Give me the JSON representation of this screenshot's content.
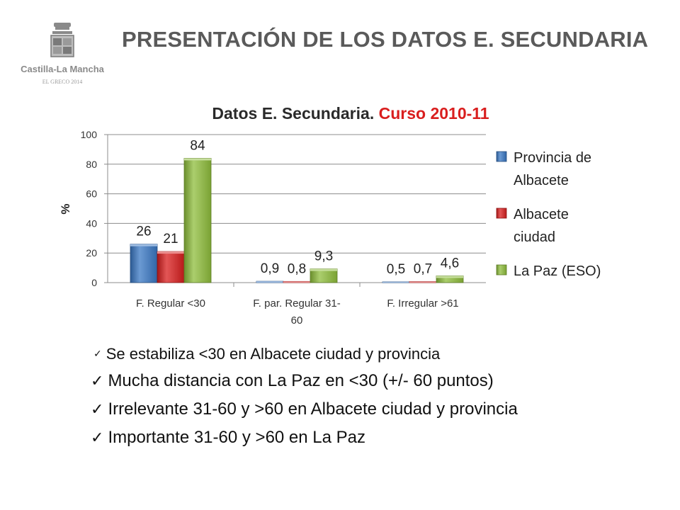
{
  "header": {
    "title": "PRESENTACIÓN DE LOS DATOS E. SECUNDARIA",
    "logo_name": "Castilla-La Mancha",
    "logo_sub": "EL GRECO 2014"
  },
  "chart_data": {
    "type": "bar",
    "title": "Datos E. Secundaria.",
    "title_highlight": "Curso 2010-11",
    "ylabel": "%",
    "xlabel": "",
    "ylim": [
      0,
      100
    ],
    "yticks": [
      "0",
      "20",
      "40",
      "60",
      "80",
      "100"
    ],
    "grid": true,
    "legend_position": "right",
    "categories": [
      "F. Regular <30",
      "F. par. Regular 31-60",
      "F. Irregular >61"
    ],
    "category_lines": [
      [
        "F. Regular <30"
      ],
      [
        "F. par. Regular 31-",
        "60"
      ],
      [
        "F. Irregular >61"
      ]
    ],
    "series": [
      {
        "name": "Provincia de Albacete",
        "legend_lines": [
          "Provincia de",
          "Albacete"
        ],
        "color": "#3a78c4",
        "values": [
          26,
          0.9,
          0.5
        ],
        "labels": [
          "26",
          "0,9",
          "0,5"
        ]
      },
      {
        "name": "Albacete ciudad",
        "legend_lines": [
          "Albacete",
          "ciudad"
        ],
        "color": "#d91e1e",
        "values": [
          21,
          0.8,
          0.7
        ],
        "labels": [
          "21",
          "0,8",
          "0,7"
        ]
      },
      {
        "name": "La Paz (ESO)",
        "legend_lines": [
          "La Paz (ESO)"
        ],
        "color": "#8fbe3c",
        "values": [
          84,
          9.3,
          4.6
        ],
        "labels": [
          "84",
          "9,3",
          "4,6"
        ]
      }
    ]
  },
  "bullets": [
    "Se estabiliza <30 en Albacete ciudad y provincia",
    "Mucha distancia con La Paz en <30 (+/- 60 puntos)",
    "Irrelevante 31-60 y >60 en Albacete ciudad y provincia",
    "Importante 31-60 y >60 en La Paz"
  ],
  "check_glyph": "✓"
}
